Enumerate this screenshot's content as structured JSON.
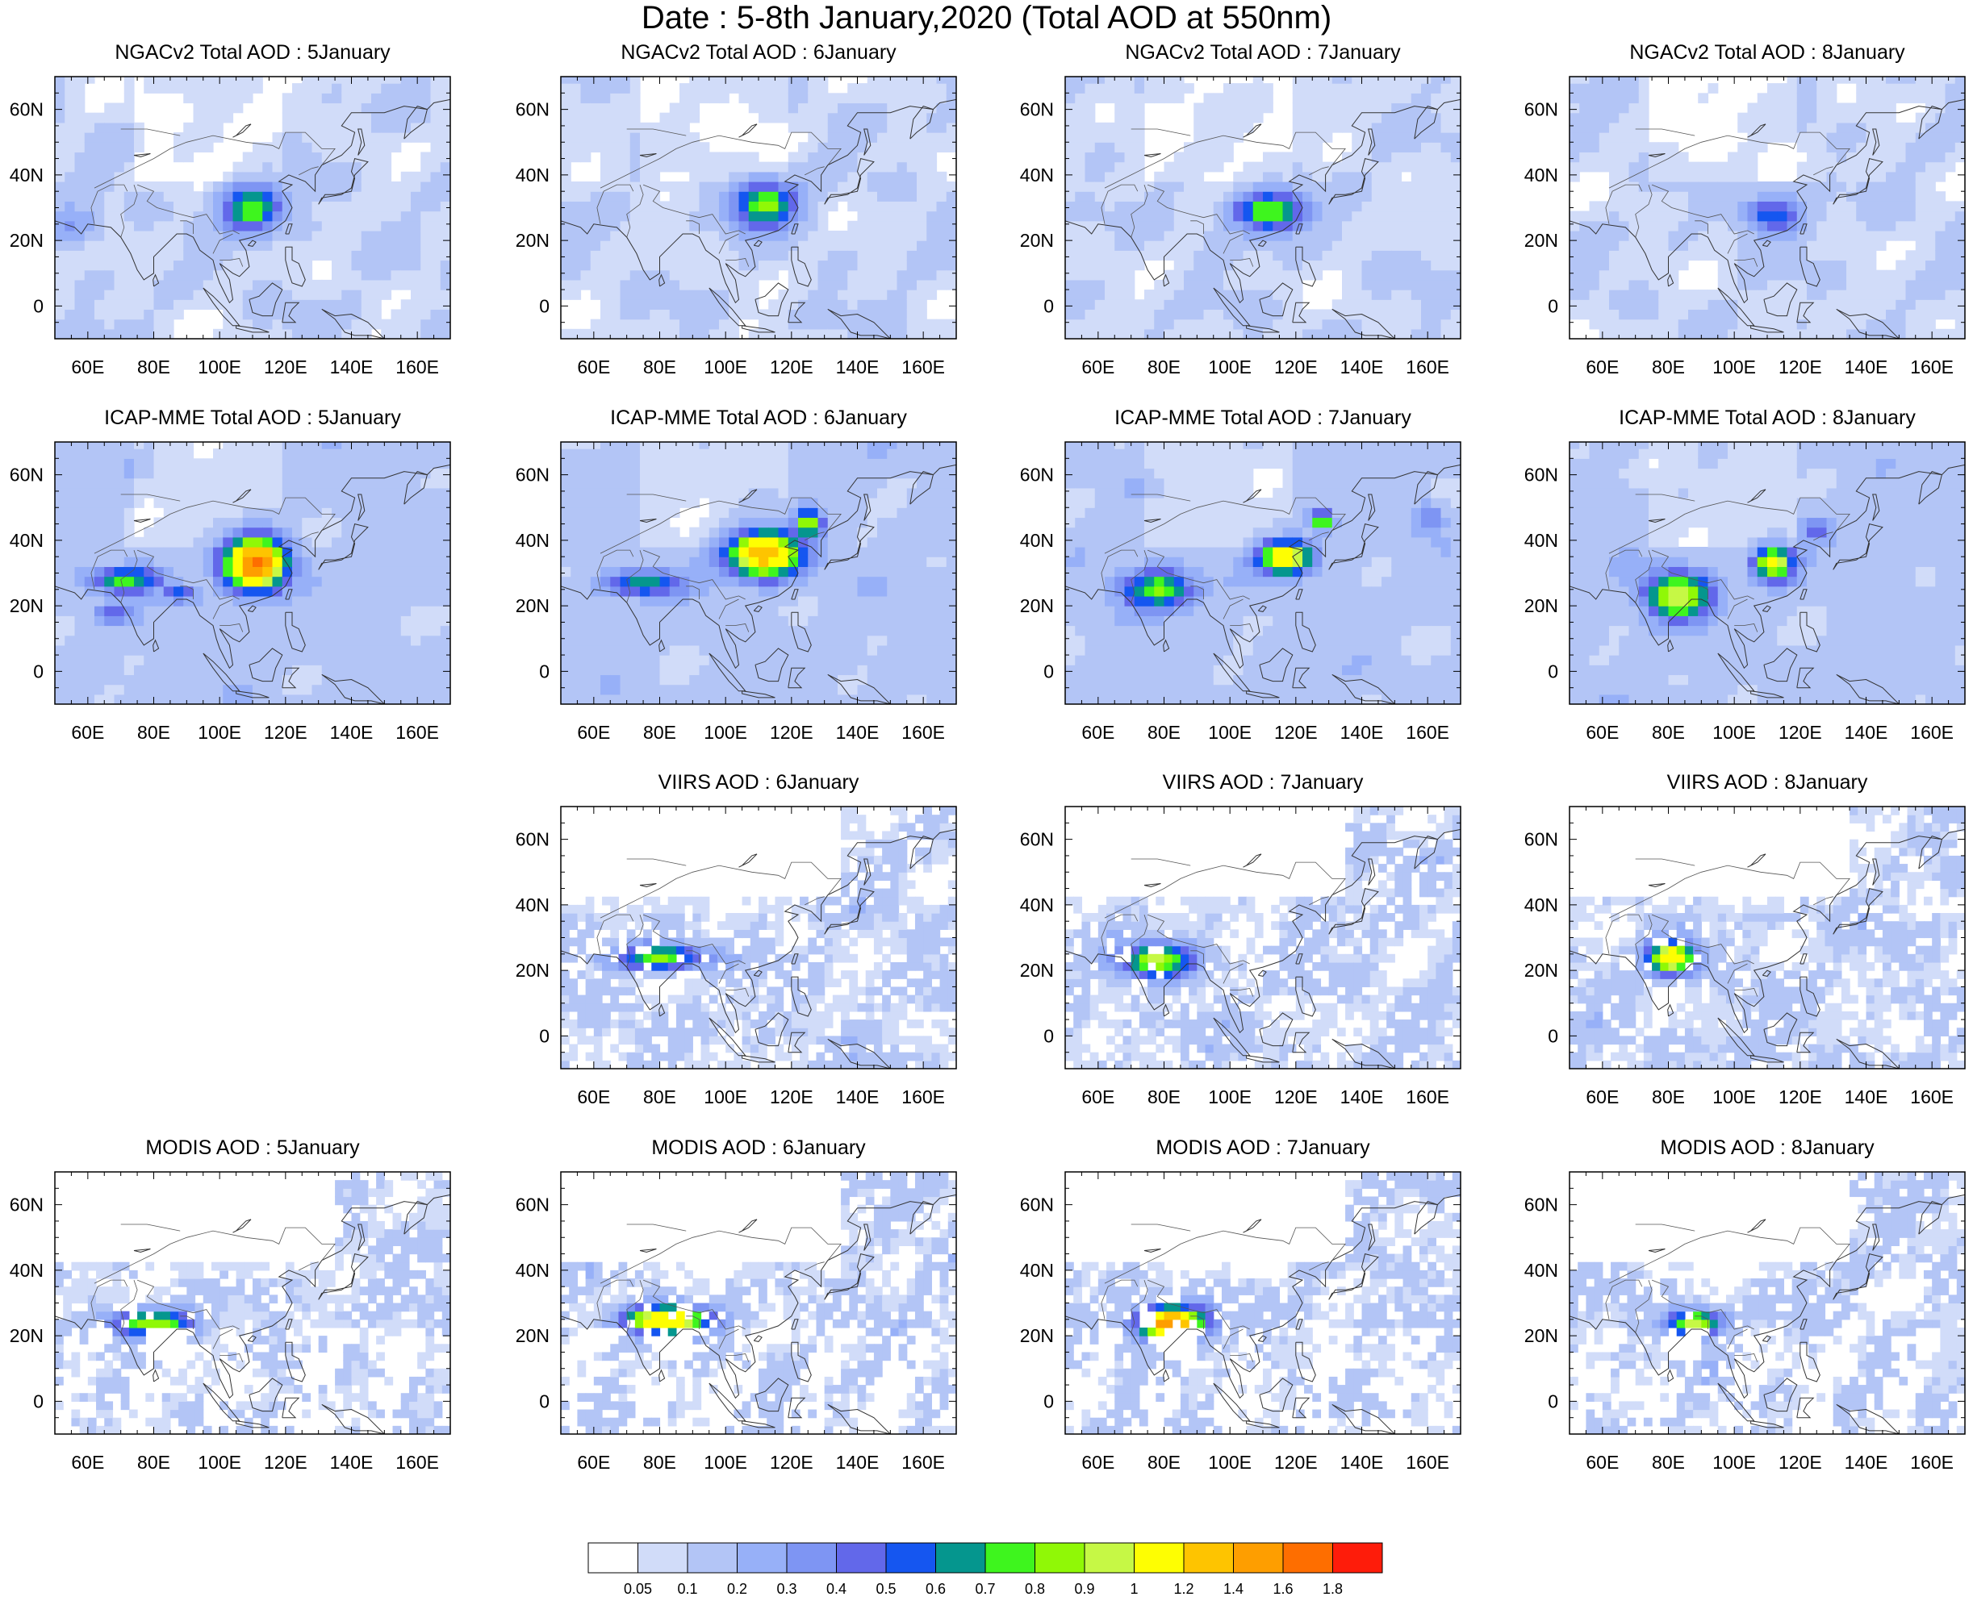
{
  "title": "Date : 5-8th January,2020 (Total AOD at 550nm)",
  "lon_ticks": [
    60,
    80,
    100,
    120,
    140,
    160
  ],
  "lon_tick_labels": [
    "60E",
    "80E",
    "100E",
    "120E",
    "140E",
    "160E"
  ],
  "lat_ticks": [
    0,
    20,
    40,
    60
  ],
  "lat_tick_labels": [
    "0",
    "20N",
    "40N",
    "60N"
  ],
  "extent": {
    "lon_min": 50,
    "lon_max": 170,
    "lat_min": -10,
    "lat_max": 70
  },
  "panels": [
    {
      "title": "NGACv2 Total AOD : 5January",
      "dataset": "NGACv2",
      "day": 5
    },
    {
      "title": "NGACv2 Total AOD : 6January",
      "dataset": "NGACv2",
      "day": 6
    },
    {
      "title": "NGACv2 Total AOD : 7January",
      "dataset": "NGACv2",
      "day": 7
    },
    {
      "title": "NGACv2 Total AOD : 8January",
      "dataset": "NGACv2",
      "day": 8
    },
    {
      "title": "ICAP-MME Total AOD : 5January",
      "dataset": "ICAP-MME",
      "day": 5
    },
    {
      "title": "ICAP-MME Total AOD : 6January",
      "dataset": "ICAP-MME",
      "day": 6
    },
    {
      "title": "ICAP-MME Total AOD : 7January",
      "dataset": "ICAP-MME",
      "day": 7
    },
    {
      "title": "ICAP-MME Total AOD : 8January",
      "dataset": "ICAP-MME",
      "day": 8
    },
    {
      "title": "VIIRS AOD : 6January",
      "dataset": "VIIRS",
      "day": 6
    },
    {
      "title": "VIIRS AOD : 7January",
      "dataset": "VIIRS",
      "day": 7
    },
    {
      "title": "VIIRS AOD : 8January",
      "dataset": "VIIRS",
      "day": 8
    },
    {
      "title": "MODIS AOD : 5January",
      "dataset": "MODIS",
      "day": 5
    },
    {
      "title": "MODIS AOD : 6January",
      "dataset": "MODIS",
      "day": 6
    },
    {
      "title": "MODIS AOD : 7January",
      "dataset": "MODIS",
      "day": 7
    },
    {
      "title": "MODIS AOD : 8January",
      "dataset": "MODIS",
      "day": 8
    }
  ],
  "colorbar": {
    "labels": [
      "0.05",
      "0.1",
      "0.2",
      "0.3",
      "0.4",
      "0.5",
      "0.6",
      "0.7",
      "0.8",
      "0.9",
      "1",
      "1.2",
      "1.4",
      "1.6",
      "1.8"
    ],
    "colors": [
      "#ffffff",
      "#d1dcf9",
      "#b3c5f6",
      "#97b0f8",
      "#7e95f3",
      "#6268ea",
      "#1556f0",
      "#05968e",
      "#3ef51e",
      "#90f806",
      "#c6f845",
      "#fefe02",
      "#fec400",
      "#fe9e00",
      "#fe6e00",
      "#fe1c0a"
    ]
  },
  "hotspots": {
    "NGACv2-5": [
      {
        "lon": 110,
        "lat": 30,
        "peak": 0.82,
        "rlon": 9,
        "rlat": 7
      },
      {
        "lon": 55,
        "lat": 25,
        "peak": 0.32,
        "rlon": 8,
        "rlat": 6
      }
    ],
    "NGACv2-6": [
      {
        "lon": 112,
        "lat": 31,
        "peak": 0.86,
        "rlon": 10,
        "rlat": 7
      }
    ],
    "NGACv2-7": [
      {
        "lon": 112,
        "lat": 29,
        "peak": 0.83,
        "rlon": 11,
        "rlat": 6
      }
    ],
    "NGACv2-8": [
      {
        "lon": 112,
        "lat": 28,
        "peak": 0.58,
        "rlon": 9,
        "rlat": 6
      }
    ],
    "ICAP-MME-5": [
      {
        "lon": 111,
        "lat": 33,
        "peak": 1.65,
        "rlon": 9,
        "rlat": 8
      },
      {
        "lon": 72,
        "lat": 28,
        "peak": 0.75,
        "rlon": 11,
        "rlat": 4
      },
      {
        "lon": 88,
        "lat": 24,
        "peak": 0.55,
        "rlon": 6,
        "rlat": 3
      },
      {
        "lon": 68,
        "lat": 18,
        "peak": 0.5,
        "rlon": 5,
        "rlat": 3
      }
    ],
    "ICAP-MME-6": [
      {
        "lon": 112,
        "lat": 36,
        "peak": 1.4,
        "rlon": 11,
        "rlat": 7
      },
      {
        "lon": 125,
        "lat": 45,
        "peak": 1.0,
        "rlon": 4,
        "rlat": 4
      },
      {
        "lon": 75,
        "lat": 27,
        "peak": 0.7,
        "rlon": 12,
        "rlat": 4
      }
    ],
    "ICAP-MME-7": [
      {
        "lon": 117,
        "lat": 35,
        "peak": 1.25,
        "rlon": 8,
        "rlat": 5
      },
      {
        "lon": 78,
        "lat": 25,
        "peak": 0.82,
        "rlon": 11,
        "rlat": 6
      },
      {
        "lon": 128,
        "lat": 46,
        "peak": 0.9,
        "rlon": 3,
        "rlat": 3
      },
      {
        "lon": 160,
        "lat": 47,
        "peak": 0.4,
        "rlon": 5,
        "rlat": 5
      }
    ],
    "ICAP-MME-8": [
      {
        "lon": 83,
        "lat": 23,
        "peak": 1.05,
        "rlon": 10,
        "rlat": 7
      },
      {
        "lon": 112,
        "lat": 33,
        "peak": 1.1,
        "rlon": 6,
        "rlat": 5
      },
      {
        "lon": 125,
        "lat": 43,
        "peak": 0.5,
        "rlon": 4,
        "rlat": 3
      }
    ],
    "VIIRS-6": [
      {
        "lon": 80,
        "lat": 24,
        "peak": 0.85,
        "rlon": 13,
        "rlat": 4
      }
    ],
    "VIIRS-7": [
      {
        "lon": 78,
        "lat": 23,
        "peak": 0.95,
        "rlon": 11,
        "rlat": 5
      }
    ],
    "VIIRS-8": [
      {
        "lon": 81,
        "lat": 24,
        "peak": 1.2,
        "rlon": 7,
        "rlat": 5
      }
    ],
    "MODIS-5": [
      {
        "lon": 80,
        "lat": 24,
        "peak": 0.9,
        "rlon": 12,
        "rlat": 4
      }
    ],
    "MODIS-6": [
      {
        "lon": 82,
        "lat": 25,
        "peak": 1.3,
        "rlon": 13,
        "rlat": 4
      }
    ],
    "MODIS-7": [
      {
        "lon": 82,
        "lat": 24,
        "peak": 1.6,
        "rlon": 10,
        "rlat": 5
      }
    ],
    "MODIS-8": [
      {
        "lon": 88,
        "lat": 24,
        "peak": 1.0,
        "rlon": 8,
        "rlat": 4
      }
    ]
  }
}
